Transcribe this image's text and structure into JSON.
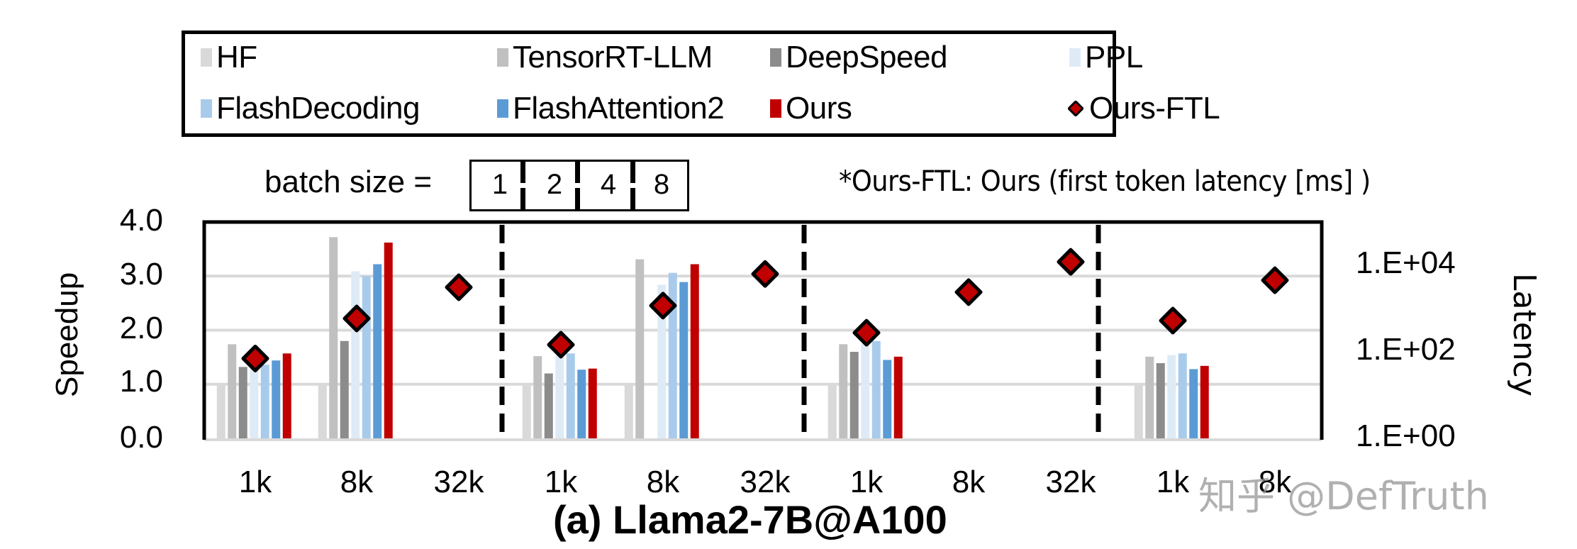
{
  "chart_data": {
    "type": "bar",
    "title": "(a) Llama2-7B@A100",
    "xlabel": "",
    "ylabel": "Speedup",
    "y2label": "Latency",
    "ylim": [
      0,
      4.0
    ],
    "y_ticks": [
      "0.0",
      "1.0",
      "2.0",
      "3.0",
      "4.0"
    ],
    "y2_scale": "log",
    "y2_ticks": [
      "1.E+00",
      "1.E+02",
      "1.E+04"
    ],
    "grid": true,
    "legend_position": "top",
    "batch_sizes": [
      "1",
      "2",
      "4",
      "8"
    ],
    "categories": [
      "bs1-1k",
      "bs1-8k",
      "bs1-32k",
      "bs2-1k",
      "bs2-8k",
      "bs2-32k",
      "bs4-1k",
      "bs4-8k",
      "bs4-32k",
      "bs8-1k",
      "bs8-8k"
    ],
    "x_tick_labels": [
      "1k",
      "8k",
      "32k",
      "1k",
      "8k",
      "32k",
      "1k",
      "8k",
      "32k",
      "1k",
      "8k"
    ],
    "series": [
      {
        "name": "HF",
        "color": "#d9d9d9",
        "values": [
          1.0,
          1.0,
          null,
          1.0,
          1.0,
          null,
          1.0,
          null,
          null,
          1.0,
          null
        ]
      },
      {
        "name": "TensorRT-LLM",
        "color": "#c0c0c0",
        "values": [
          1.74,
          3.72,
          null,
          1.52,
          3.31,
          null,
          1.74,
          null,
          null,
          1.51,
          null
        ]
      },
      {
        "name": "DeepSpeed",
        "color": "#8c8c8c",
        "values": [
          1.32,
          1.8,
          null,
          1.2,
          null,
          null,
          1.6,
          null,
          null,
          1.39,
          null
        ]
      },
      {
        "name": "PPL",
        "color": "#deebf7",
        "values": [
          1.35,
          3.09,
          null,
          1.53,
          2.84,
          null,
          1.75,
          null,
          null,
          1.54,
          null
        ]
      },
      {
        "name": "FlashDecoding",
        "color": "#a9cbeb",
        "values": [
          1.36,
          3.0,
          null,
          1.57,
          3.06,
          null,
          1.8,
          null,
          null,
          1.57,
          null
        ]
      },
      {
        "name": "FlashAttention2",
        "color": "#5b9bd5",
        "values": [
          1.44,
          3.22,
          null,
          1.27,
          2.89,
          null,
          1.45,
          null,
          null,
          1.28,
          null
        ]
      },
      {
        "name": "Ours",
        "color": "#c00000",
        "values": [
          1.57,
          3.62,
          null,
          1.29,
          3.22,
          null,
          1.51,
          null,
          null,
          1.34,
          null
        ]
      },
      {
        "name": "Ours-FTL",
        "marker": "diamond",
        "axis": "y2",
        "unit": "ms",
        "color": "#c00000",
        "values": [
          70,
          590,
          3100,
          146,
          1170,
          6300,
          276,
          2390,
          12000,
          527,
          4500
        ]
      }
    ]
  },
  "legend": {
    "items": [
      {
        "label": "HF",
        "color": "#d9d9d9"
      },
      {
        "label": "TensorRT-LLM",
        "color": "#c0c0c0"
      },
      {
        "label": "DeepSpeed",
        "color": "#8c8c8c"
      },
      {
        "label": "PPL",
        "color": "#deebf7"
      },
      {
        "label": "FlashDecoding",
        "color": "#a9cbeb"
      },
      {
        "label": "FlashAttention2",
        "color": "#5b9bd5"
      },
      {
        "label": "Ours",
        "color": "#c00000"
      },
      {
        "label": "Ours-FTL",
        "color": "#c00000"
      }
    ]
  },
  "annotations": {
    "batch_label": "batch size =",
    "batch_values": [
      "1",
      "2",
      "4",
      "8"
    ],
    "note": "*Ours-FTL: Ours (first token latency [ms] )"
  },
  "watermark": "知乎 @DefTruth"
}
